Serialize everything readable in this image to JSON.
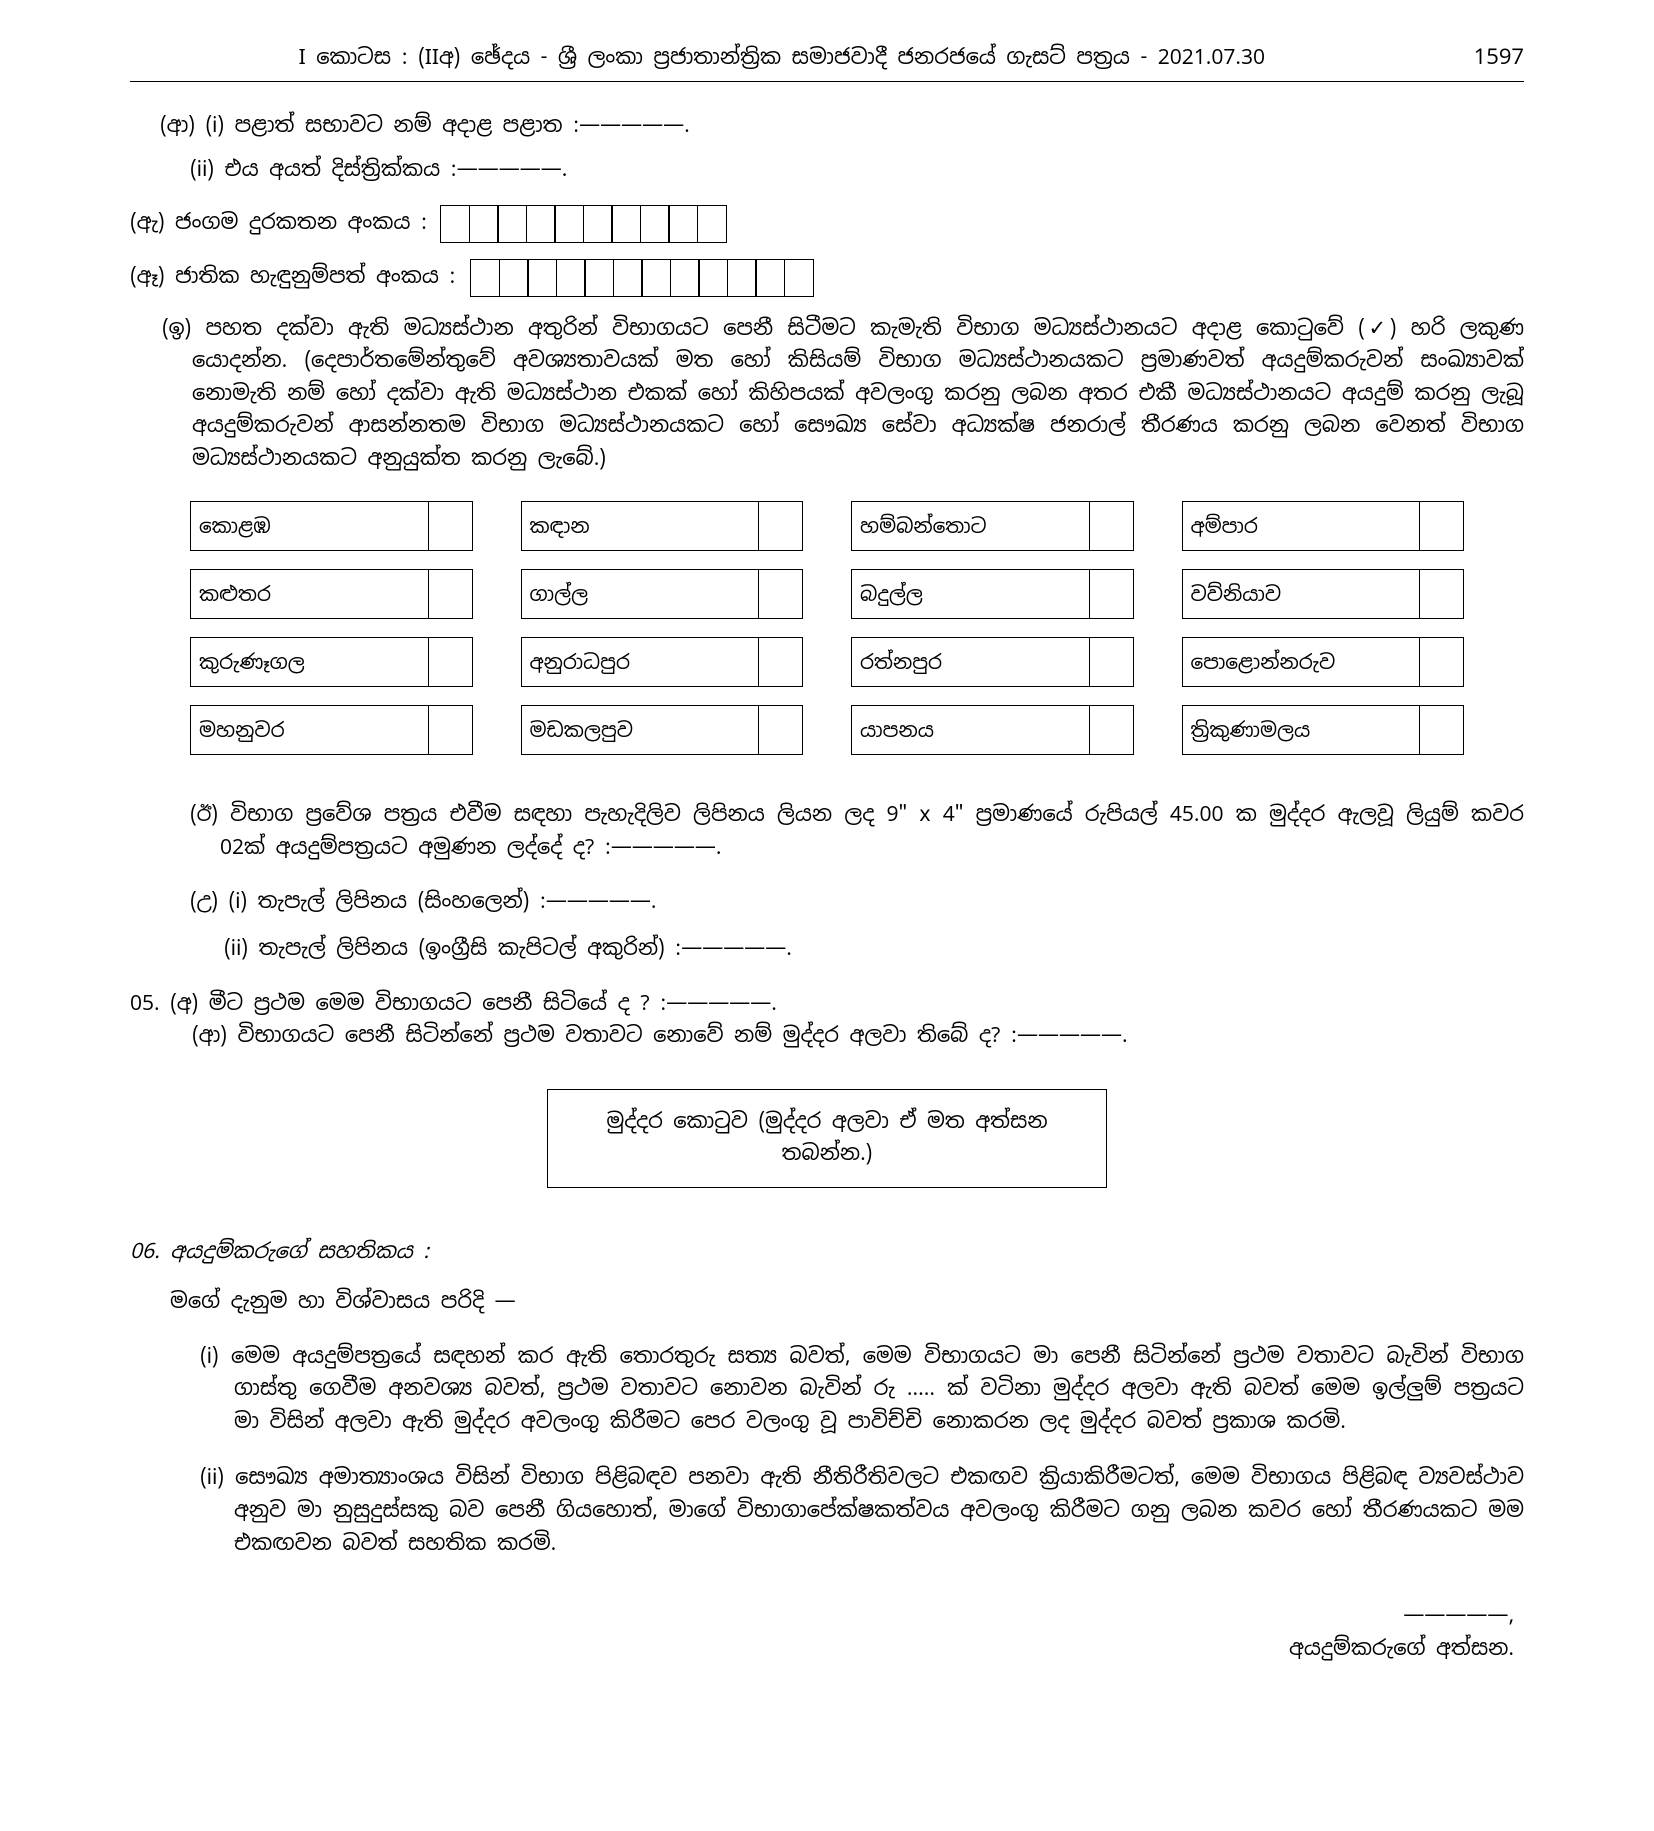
{
  "header": {
    "title": "I කොටස : (IIඅ) ඡේදය - ශ්‍රී ලංකා ප්‍රජාතාන්ත්‍රික සමාජවාදී ජනරජයේ ගැසට් පත්‍රය - 2021.07.30",
    "page": "1597"
  },
  "item_aa_i": "(ආ) (i)   පළාත් සභාවට නම් අදාළ පළාත :—————.",
  "item_aa_ii": "(ii)   එය අයත් දිස්ත්‍රික්කය :—————.",
  "item_ae_label": "(ඇ)  ජංගම දුරකතන අංකය :",
  "item_ae_boxes": 10,
  "item_ai_label": "(ඈ)  ජාතික හැඳුනුම්පත් අංකය :",
  "item_ai_boxes": 12,
  "item_i_para": "(ඉ)  පහත දක්වා ඇති මධ්‍යස්ථාන අතුරින් විභාගයට පෙනී සිටීමට කැමැති විභාග මධ්‍යස්ථානයට අදාළ කොටුවේ (✓) හරි ලකුණ යොදන්න. (දෙපාර්තමේන්තුවේ අවශ්‍යතාවයක් මත හෝ කිසියම් විභාග මධ්‍යස්ථානයකට ප්‍රමාණවත් අයදුම්කරුවන් සංඛ්‍යාවක් නොමැති නම් හෝ දක්වා ඇති මධ්‍යස්ථාන එකක් හෝ කිහිපයක් අවලංගු කරනු ලබන අතර එකී මධ්‍යස්ථානයට අයදුම් කරනු ලැබූ අයදුම්කරුවන් ආසන්නතම විභාග මධ්‍යස්ථානයකට හෝ සෞඛ්‍ය සේවා අධ්‍යක්ෂ ජනරාල් තීරණය කරනු ලබන වෙනත් විභාග මධ්‍යස්ථානයකට අනුයුක්ත කරනු ලැබේ.)",
  "centers": [
    "කොළඹ",
    "කඳාන",
    "හම්බන්තොට",
    "අම්පාර",
    "කළුතර",
    "ගාල්ල",
    "බදුල්ල",
    "වව්නියාව",
    "කුරුණෑගල",
    "අනුරාධපුර",
    "රත්නපුර",
    "පොළොන්නරුව",
    "මහනුවර",
    "මඩකලපුව",
    "යාපනය",
    "ත්‍රිකුණාමලය"
  ],
  "item_ii": "(ඊ)  විභාග ප්‍රවේශ පත්‍රය එවීම සඳහා පැහැදිලිව ලිපිනය ලියන ලද 9\" x 4\" ප්‍රමාණයේ රුපියල් 45.00 ක මුද්දර ඇලවූ ලියුම් කවර 02ක් අයදුම්පත්‍රයට අමුණන ලද්දේ ද? :—————.",
  "item_u_i": "(උ) (i)  තැපැල් ලිපිනය (සිංහලෙන්) :—————.",
  "item_u_ii": "(ii)  තැපැල් ලිපිනය (ඉංග්‍රීසි කැපිටල් අකුරින්) :—————.",
  "q05_a": "05.  (අ)  මීට ප්‍රථම මෙම විභාගයට පෙනී සිටියේ ද ? :—————.",
  "q05_aa": "(ආ)  විභාගයට පෙනී සිටින්නේ ප්‍රථම වතාවට නොවේ නම් මුද්දර අලවා තිබේ ද? :—————.",
  "stamp_box": "මුද්දර කොටුව (මුද්දර අලවා ඒ මත අත්සන තබන්න.)",
  "sec06_title": "06. අයදුම්කරුගේ සහතිකය :",
  "decl_intro": "මගේ දැනුම හා විශ්වාසය පරිදි —",
  "decl_i": "(i)   මෙම අයදුම්පත්‍රයේ සඳහන් කර ඇති තොරතුරු සත්‍ය බවත්, මෙම විභාගයට මා පෙනී සිටින්නේ ප්‍රථම වතාවට බැවින් විභාග ගාස්තු ගෙවීම අනවශ්‍ය බවත්, ප්‍රථම වතාවට නොවන බැවින් රු ..... ක් වටිනා මුද්දර අලවා ඇති බවත් මෙම ඉල්ලුම් පත්‍රයට මා විසින් අලවා ඇති මුද්දර අවලංගු කිරීමට පෙර වලංගු වූ පාවිච්චි නොකරන ලද මුද්දර බවත් ප්‍රකාශ කරමි.",
  "decl_ii": "(ii)  සෞඛ්‍ය අමාත්‍යාංශය විසින් විභාග පිළිබඳව පනවා ඇති නීතිරීතිවලට එකඟව ක්‍රියාකිරීමටත්, මෙම විභාගය පිළිබඳ ව්‍යවස්ථාව අනුව මා නුසුදුස්සකු බව පෙනී ගියහොත්, මාගේ විභාගාපේක්ෂකත්වය අවලංගු කිරීමට ගනු ලබන කවර හෝ තීරණයකට මම එකඟවන බවත් සහතික කරමි.",
  "sig_dash": "—————,",
  "sig_label": "අයදුම්කරුගේ අත්සන."
}
